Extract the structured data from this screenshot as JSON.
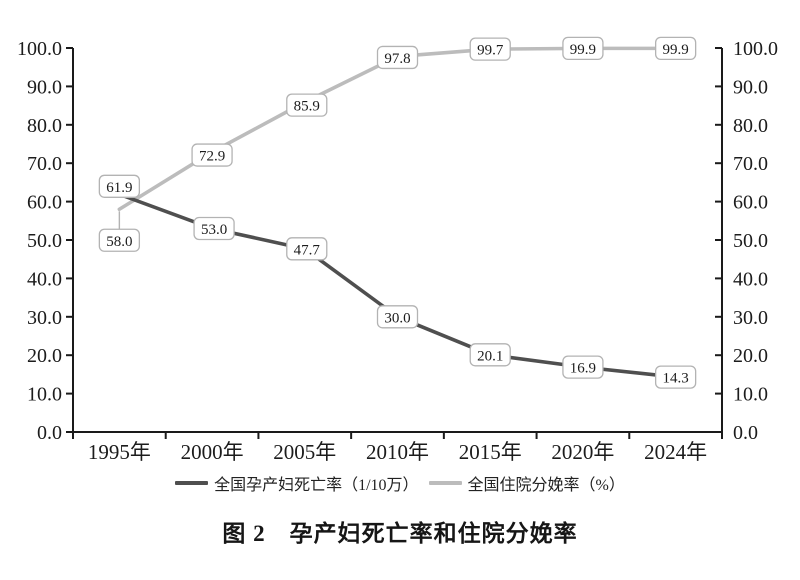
{
  "figure": {
    "caption": "图 2　孕产妇死亡率和住院分娩率"
  },
  "chart_data": {
    "type": "line",
    "title": "图 2　孕产妇死亡率和住院分娩率",
    "categories": [
      "1995年",
      "2000年",
      "2005年",
      "2010年",
      "2015年",
      "2020年",
      "2024年"
    ],
    "series": [
      {
        "name": "全国孕产妇死亡率（1/10万）",
        "color": "#4f4f4f",
        "line_width": 3.6,
        "values": [
          61.9,
          53.0,
          47.7,
          30.0,
          20.1,
          16.9,
          14.3
        ],
        "label_offsets": [
          [
            0,
            -8
          ],
          [
            2,
            0
          ],
          [
            2,
            0
          ],
          [
            0,
            0
          ],
          [
            0,
            0
          ],
          [
            0,
            0
          ],
          [
            0,
            0
          ]
        ],
        "label_leaders": [
          false,
          false,
          false,
          false,
          false,
          false,
          false
        ]
      },
      {
        "name": "全国住院分娩率（%）",
        "color": "#bcbcbc",
        "line_width": 3.6,
        "values": [
          58.0,
          72.9,
          85.9,
          97.8,
          99.7,
          99.9,
          99.9
        ],
        "label_offsets": [
          [
            0,
            31
          ],
          [
            0,
            3
          ],
          [
            2,
            3
          ],
          [
            0,
            1
          ],
          [
            0,
            0
          ],
          [
            0,
            0
          ],
          [
            0,
            0
          ]
        ],
        "label_leaders": [
          true,
          false,
          false,
          false,
          false,
          false,
          false
        ]
      }
    ],
    "ylim": [
      0,
      100
    ],
    "ytick_step": 10,
    "ytick_decimals": 1,
    "dual_y_axis": true,
    "grid": false,
    "data_labels": true,
    "legend_position": "bottom"
  }
}
